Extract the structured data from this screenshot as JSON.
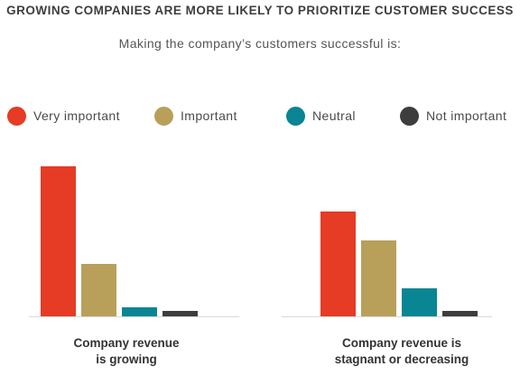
{
  "title": "GROWING COMPANIES ARE MORE LIKELY TO PRIORITIZE CUSTOMER SUCCESS",
  "subtitle": "Making the company’s customers successful is:",
  "colors": {
    "very_important": "#e63b24",
    "important": "#b8a05a",
    "neutral": "#0a8593",
    "not_important": "#3d3d3d",
    "baseline": "#d9d9d9"
  },
  "chart_data": {
    "type": "bar",
    "title": "GROWING COMPANIES ARE MORE LIKELY TO PRIORITIZE CUSTOMER SUCCESS",
    "subtitle": "Making the company’s customers successful is:",
    "categories": [
      "Company revenue is growing",
      "Company revenue is stagnant or decreasing"
    ],
    "category_lines": [
      [
        "Company revenue",
        "is growing"
      ],
      [
        "Company revenue is",
        "stagnant or decreasing"
      ]
    ],
    "series": [
      {
        "name": "Very important",
        "color": "#e63b24",
        "values": [
          166,
          116
        ]
      },
      {
        "name": "Important",
        "color": "#b8a05a",
        "values": [
          58,
          84
        ]
      },
      {
        "name": "Neutral",
        "color": "#0a8593",
        "values": [
          10,
          31
        ]
      },
      {
        "name": "Not important",
        "color": "#3d3d3d",
        "values": [
          6,
          6
        ]
      }
    ],
    "xlabel": "",
    "ylabel": "",
    "ylim": [
      0,
      175
    ],
    "y_axis_shown": false,
    "grid": false,
    "legend_position": "top"
  }
}
